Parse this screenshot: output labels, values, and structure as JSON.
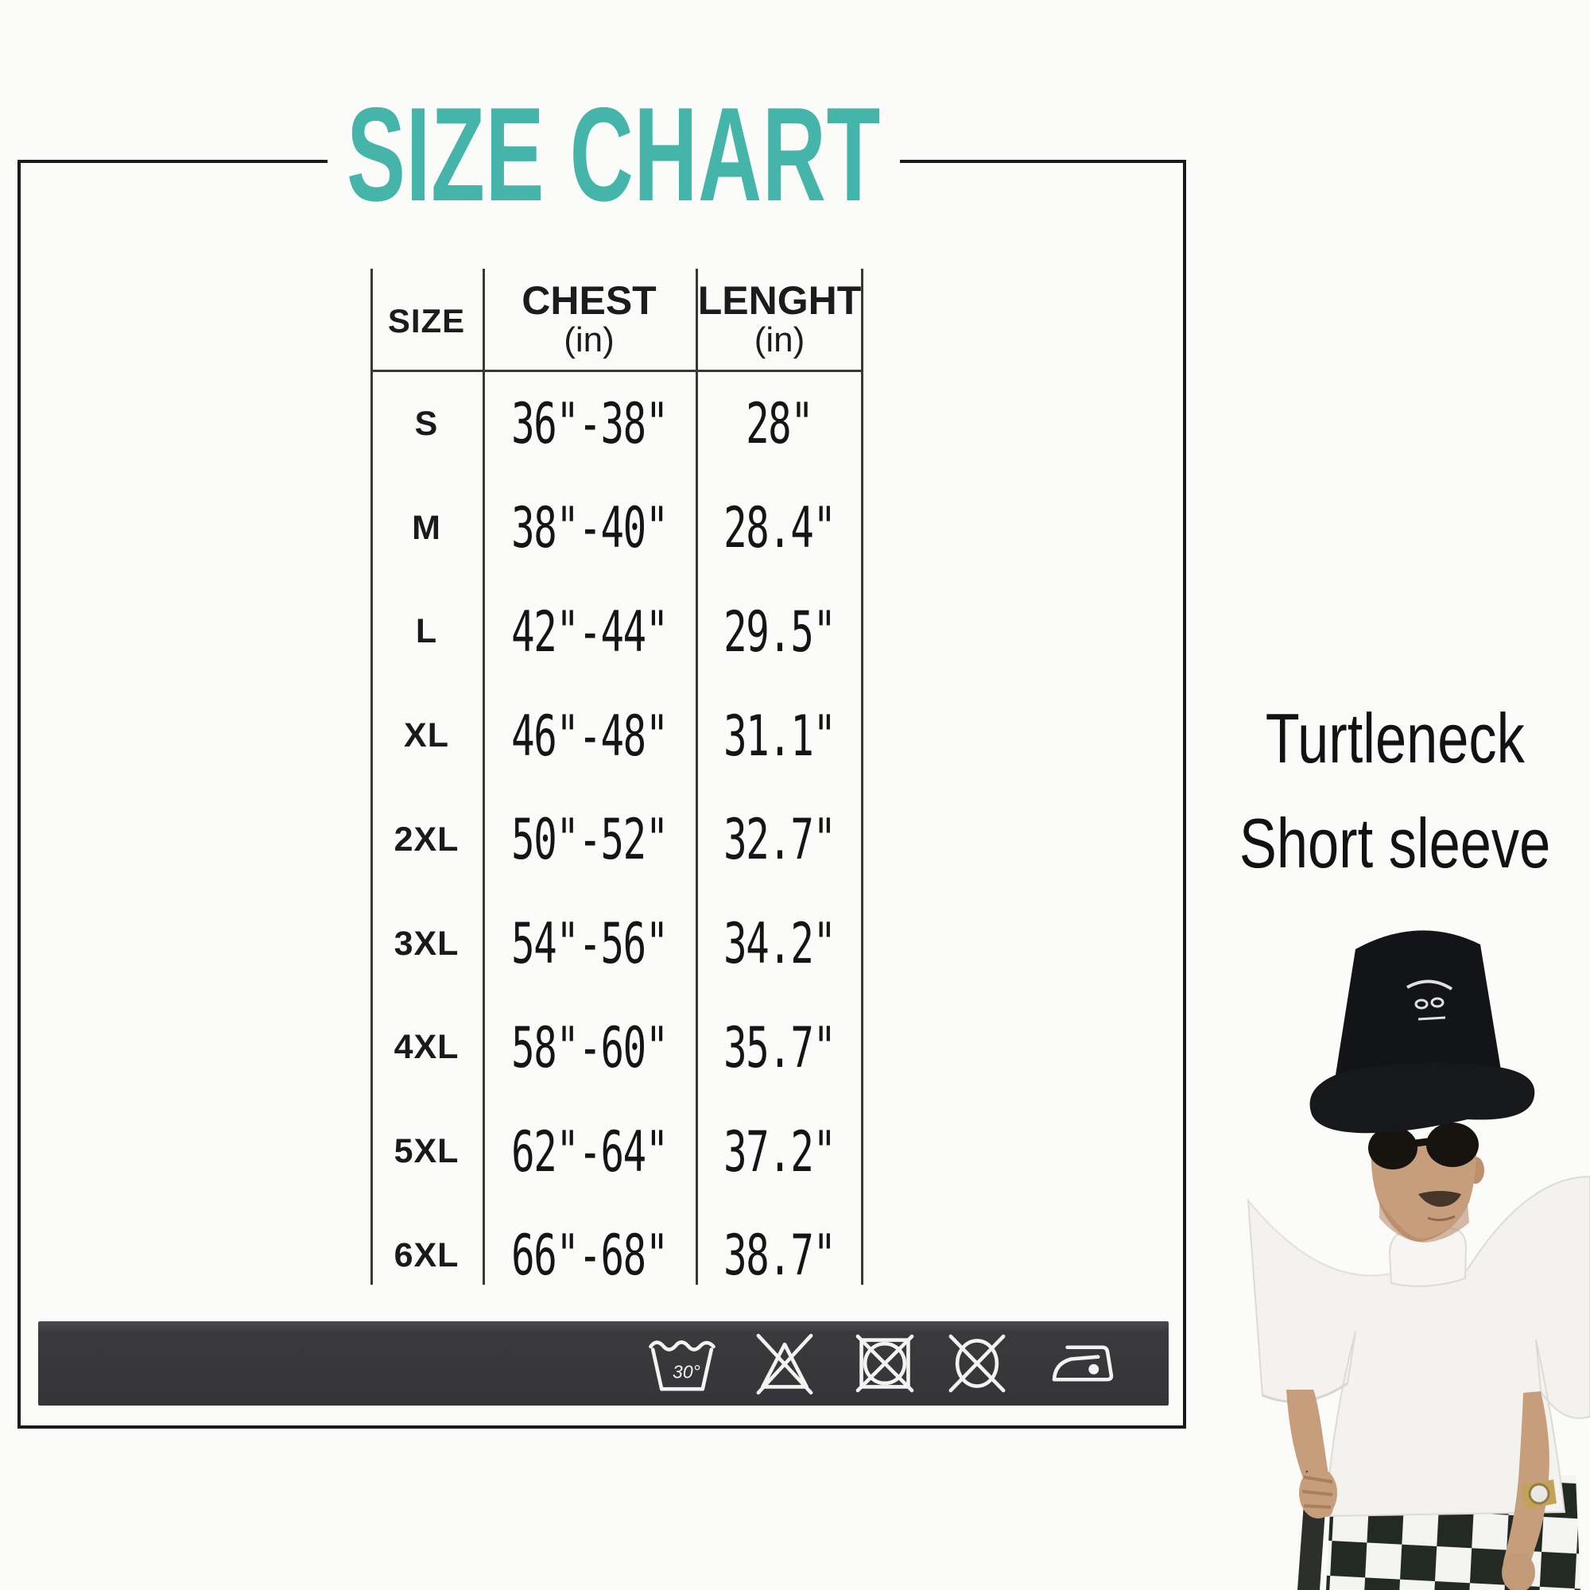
{
  "title": {
    "text": "SIZE CHART",
    "color": "#45b4a9"
  },
  "table": {
    "headers": [
      {
        "label": "SIZE",
        "sub": ""
      },
      {
        "label": "CHEST",
        "sub": "(in)"
      },
      {
        "label": "LENGHT",
        "sub": "(in)"
      }
    ],
    "rows": [
      {
        "size": "S",
        "chest": "36\"-38\"",
        "length": "28\""
      },
      {
        "size": "M",
        "chest": "38\"-40\"",
        "length": "28.4\""
      },
      {
        "size": "L",
        "chest": "42\"-44\"",
        "length": "29.5\""
      },
      {
        "size": "XL",
        "chest": "46\"-48\"",
        "length": "31.1\""
      },
      {
        "size": "2XL",
        "chest": "50\"-52\"",
        "length": "32.7\""
      },
      {
        "size": "3XL",
        "chest": "54\"-56\"",
        "length": "34.2\""
      },
      {
        "size": "4XL",
        "chest": "58\"-60\"",
        "length": "35.7\""
      },
      {
        "size": "5XL",
        "chest": "62\"-64\"",
        "length": "37.2\""
      },
      {
        "size": "6XL",
        "chest": "66\"-68\"",
        "length": "38.7\""
      }
    ]
  },
  "care_bar": {
    "background": "#3a393c",
    "wash_temp": "30°",
    "icons": [
      "wash-30-icon",
      "do-not-bleach-icon",
      "do-not-tumble-dry-icon",
      "do-not-dry-clean-icon",
      "iron-icon"
    ]
  },
  "side_text": {
    "line1": "Turtleneck",
    "line2": "Short sleeve"
  },
  "colors": {
    "accent_teal": "#45b4a9",
    "frame_border": "#1b1b1b",
    "bar_background": "#3a393c"
  },
  "chart_data": {
    "type": "table",
    "title": "SIZE CHART",
    "columns": [
      "SIZE",
      "CHEST (in)",
      "LENGHT (in)"
    ],
    "rows": [
      [
        "S",
        "36\"-38\"",
        "28\""
      ],
      [
        "M",
        "38\"-40\"",
        "28.4\""
      ],
      [
        "L",
        "42\"-44\"",
        "29.5\""
      ],
      [
        "XL",
        "46\"-48\"",
        "31.1\""
      ],
      [
        "2XL",
        "50\"-52\"",
        "32.7\""
      ],
      [
        "3XL",
        "54\"-56\"",
        "34.2\""
      ],
      [
        "4XL",
        "58\"-60\"",
        "35.7\""
      ],
      [
        "5XL",
        "62\"-64\"",
        "37.2\""
      ],
      [
        "6XL",
        "66\"-68\"",
        "38.7\""
      ]
    ]
  }
}
